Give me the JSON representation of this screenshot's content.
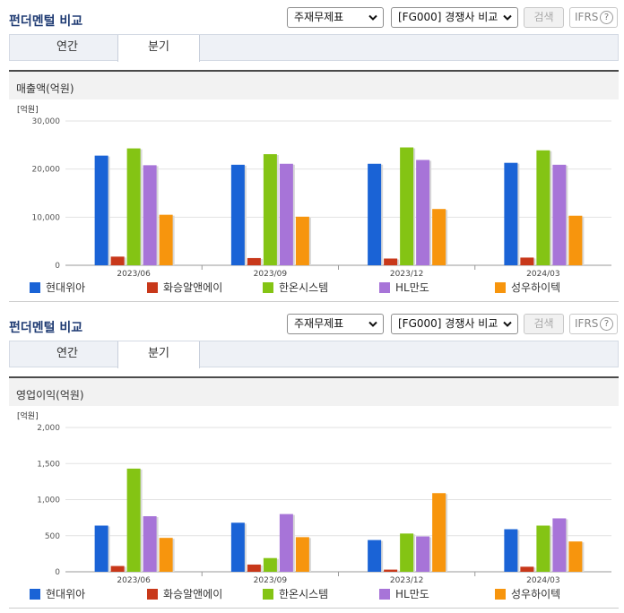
{
  "colors": [
    "#1a63d6",
    "#c8381a",
    "#84c414",
    "#a774d8",
    "#f7950d"
  ],
  "legend": [
    "현대위아",
    "화승알앤에이",
    "한온시스템",
    "HL만도",
    "성우하이텍"
  ],
  "panels": [
    {
      "title": "펀더멘털 비교",
      "select_a": "주재무제표",
      "select_b": "[FG000] 경쟁사 비교",
      "search_label": "검색",
      "ifrs_label": "IFRS",
      "help_label": "?",
      "tabs": [
        "연간",
        "분기"
      ],
      "active_tab": "분기",
      "subtitle": "매출액(억원)"
    },
    {
      "title": "펀더멘털 비교",
      "select_a": "주재무제표",
      "select_b": "[FG000] 경쟁사 비교",
      "search_label": "검색",
      "ifrs_label": "IFRS",
      "help_label": "?",
      "tabs": [
        "연간",
        "분기"
      ],
      "active_tab": "분기",
      "subtitle": "영업이익(억원)"
    }
  ],
  "chart_data": [
    {
      "type": "bar",
      "unit_label": "[억원]",
      "categories": [
        "2023/06",
        "2023/09",
        "2023/12",
        "2024/03"
      ],
      "ylim": [
        0,
        30000
      ],
      "yticks": [
        0,
        10000,
        20000,
        30000
      ],
      "ytick_labels": [
        "0",
        "10,000",
        "20,000",
        "30,000"
      ],
      "series": [
        {
          "name": "현대위아",
          "values": [
            22800,
            20900,
            21100,
            21300
          ]
        },
        {
          "name": "화승알앤에이",
          "values": [
            1800,
            1500,
            1400,
            1600
          ]
        },
        {
          "name": "한온시스템",
          "values": [
            24300,
            23100,
            24500,
            23900
          ]
        },
        {
          "name": "HL만도",
          "values": [
            20800,
            21100,
            21900,
            20900
          ]
        },
        {
          "name": "성우하이텍",
          "values": [
            10500,
            10100,
            11700,
            10300
          ]
        }
      ]
    },
    {
      "type": "bar",
      "unit_label": "[억원]",
      "categories": [
        "2023/06",
        "2023/09",
        "2023/12",
        "2024/03"
      ],
      "ylim": [
        0,
        2000
      ],
      "yticks": [
        0,
        500,
        1000,
        1500,
        2000
      ],
      "ytick_labels": [
        "0",
        "500",
        "1,000",
        "1,500",
        "2,000"
      ],
      "series": [
        {
          "name": "현대위아",
          "values": [
            640,
            680,
            440,
            590
          ]
        },
        {
          "name": "화승알앤에이",
          "values": [
            80,
            100,
            30,
            70
          ]
        },
        {
          "name": "한온시스템",
          "values": [
            1430,
            190,
            530,
            640
          ]
        },
        {
          "name": "HL만도",
          "values": [
            770,
            800,
            490,
            740
          ]
        },
        {
          "name": "성우하이텍",
          "values": [
            470,
            480,
            1090,
            420
          ]
        }
      ]
    }
  ]
}
